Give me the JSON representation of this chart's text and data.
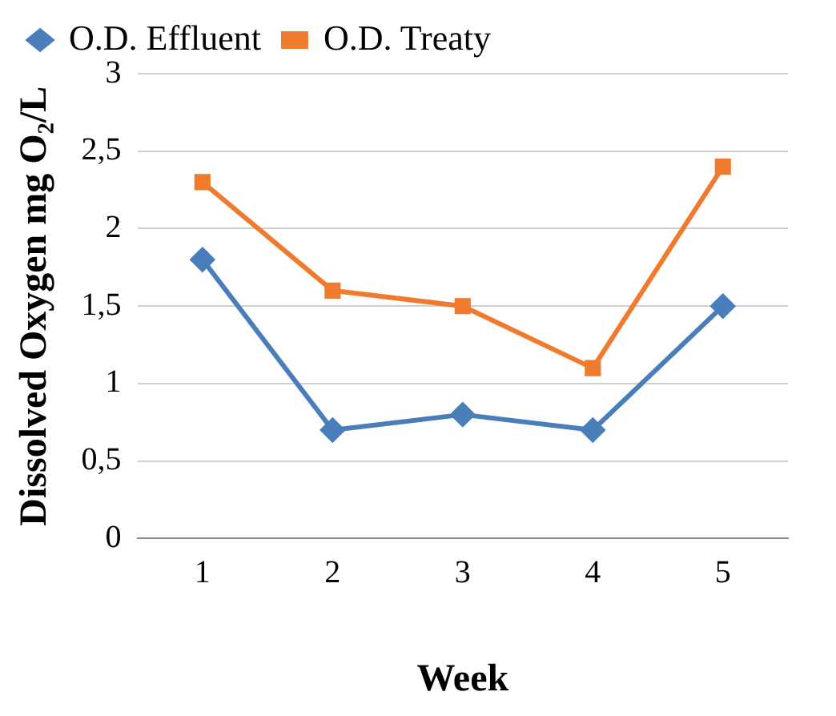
{
  "chart_data": {
    "type": "line",
    "xlabel": "Week",
    "ylabel": "Dissolved Oxygen mg O₂/L",
    "categories": [
      "1",
      "2",
      "3",
      "4",
      "5"
    ],
    "series": [
      {
        "name": "O.D. Effluent",
        "color": "#4a7ebb",
        "marker": "diamond",
        "values": [
          1.8,
          0.7,
          0.8,
          0.7,
          1.5
        ]
      },
      {
        "name": "O.D. Treaty",
        "color": "#f07b2e",
        "marker": "square",
        "values": [
          2.3,
          1.6,
          1.5,
          1.1,
          2.4
        ]
      }
    ],
    "ylim": [
      0,
      3
    ],
    "yticks": [
      0,
      {
        "value": 0.5,
        "label": "0,5"
      },
      1,
      {
        "value": 1.5,
        "label": "1,5"
      },
      2,
      {
        "value": 2.5,
        "label": "2,5"
      },
      3
    ],
    "grid": "y",
    "legend": "top",
    "line_style": "solid"
  }
}
